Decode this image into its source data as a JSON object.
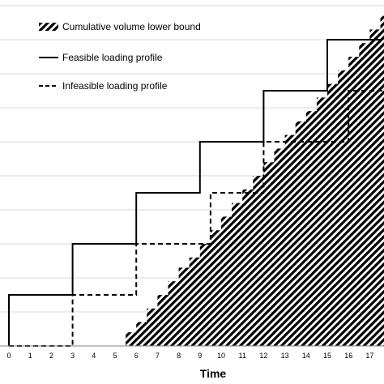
{
  "chart_data": {
    "type": "line",
    "title": "",
    "xlabel": "Time",
    "ylabel": "",
    "xlim": [
      0,
      17.6
    ],
    "ylim": [
      0,
      10.3
    ],
    "x_ticks": [
      "0",
      "1",
      "2",
      "3",
      "4",
      "5",
      "6",
      "7",
      "8",
      "9",
      "10",
      "11",
      "12",
      "13",
      "14",
      "15",
      "16",
      "17"
    ],
    "grid": "horizontal",
    "legend_position": "top-left",
    "series": [
      {
        "name": "Cumulative volume lower bound",
        "style": "hatched-area",
        "x": [
          5.5,
          6,
          6.5,
          7,
          7.5,
          8,
          8.5,
          9,
          9.5,
          10,
          10.5,
          11,
          11.5,
          12,
          12.5,
          13,
          13.5,
          14,
          14.5,
          15,
          15.5,
          16,
          16.5,
          17,
          17.5
        ],
        "y": [
          0.4,
          0.7,
          1.1,
          1.5,
          1.9,
          2.3,
          2.6,
          3,
          3.4,
          3.8,
          4.2,
          4.6,
          5,
          5.4,
          5.8,
          6.2,
          6.6,
          6.9,
          7.3,
          7.7,
          8.1,
          8.5,
          8.9,
          9.3,
          9.7
        ],
        "color": "#000000"
      },
      {
        "name": "Feasible loading profile",
        "style": "solid-step",
        "x": [
          0,
          3,
          6,
          9,
          12,
          15,
          17.6
        ],
        "y": [
          1.5,
          3,
          4.5,
          6,
          7.5,
          9,
          9
        ],
        "color": "#000000"
      },
      {
        "name": "Infeasible loading profile",
        "style": "dashed-step",
        "x": [
          0,
          3,
          6,
          9.5,
          12,
          16,
          17.6
        ],
        "y": [
          0,
          1.5,
          3,
          4.5,
          6,
          7.5,
          7.5
        ],
        "color": "#000000"
      }
    ]
  }
}
